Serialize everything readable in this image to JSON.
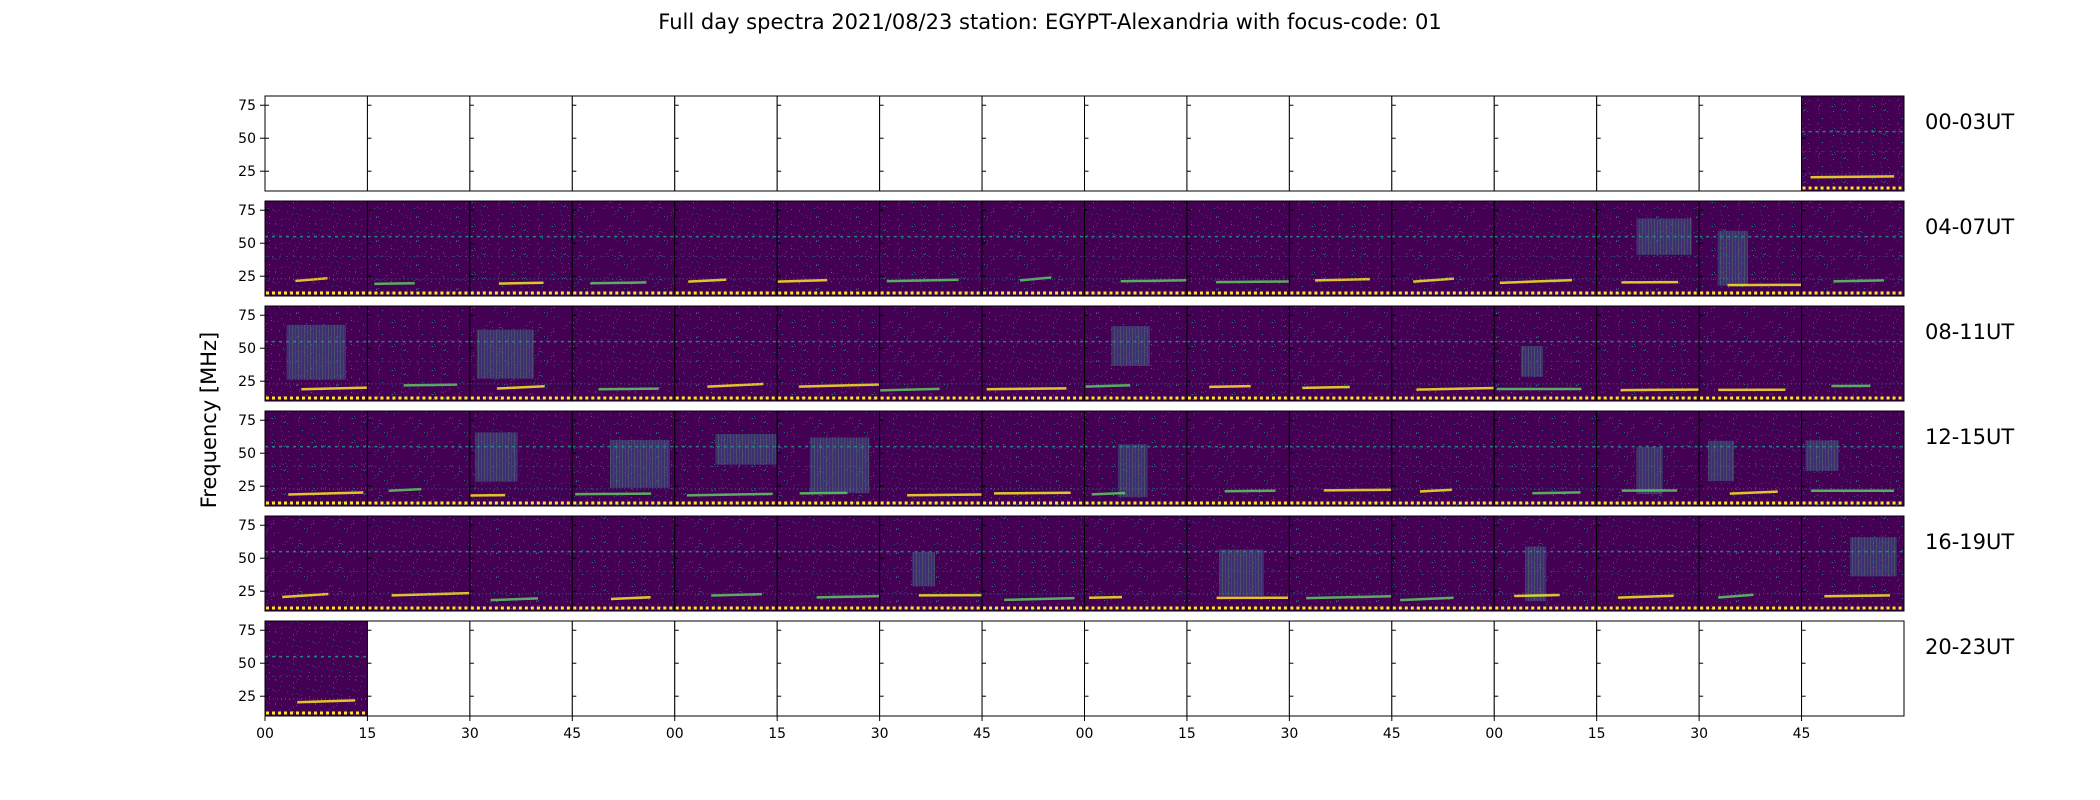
{
  "chart_data": {
    "type": "heatmap",
    "title": "Full day spectra 2021/08/23 station: EGYPT-Alexandria with focus-code: 01",
    "ylabel": "Frequency [MHz]",
    "y_ticks": [
      25,
      50,
      75
    ],
    "ylim": [
      10,
      82
    ],
    "x_ticks": [
      "00",
      "15",
      "30",
      "45",
      "00",
      "15",
      "30",
      "45",
      "00",
      "15",
      "30",
      "45",
      "00",
      "15",
      "30",
      "45"
    ],
    "colormap": "viridis",
    "colors": {
      "background": "#440154",
      "mid": "#3b528b",
      "teal": "#21918c",
      "green": "#5ec962",
      "yellow": "#fde725"
    },
    "rows": [
      {
        "label": "00-03UT",
        "filled_panels": [
          15
        ]
      },
      {
        "label": "04-07UT",
        "filled_panels": [
          0,
          1,
          2,
          3,
          4,
          5,
          6,
          7,
          8,
          9,
          10,
          11,
          12,
          13,
          14,
          15
        ]
      },
      {
        "label": "08-11UT",
        "filled_panels": [
          0,
          1,
          2,
          3,
          4,
          5,
          6,
          7,
          8,
          9,
          10,
          11,
          12,
          13,
          14,
          15
        ]
      },
      {
        "label": "12-15UT",
        "filled_panels": [
          0,
          1,
          2,
          3,
          4,
          5,
          6,
          7,
          8,
          9,
          10,
          11,
          12,
          13,
          14,
          15
        ]
      },
      {
        "label": "16-19UT",
        "filled_panels": [
          0,
          1,
          2,
          3,
          4,
          5,
          6,
          7,
          8,
          9,
          10,
          11,
          12,
          13,
          14,
          15
        ]
      },
      {
        "label": "20-23UT",
        "filled_panels": [
          0
        ]
      }
    ],
    "grid": false
  }
}
